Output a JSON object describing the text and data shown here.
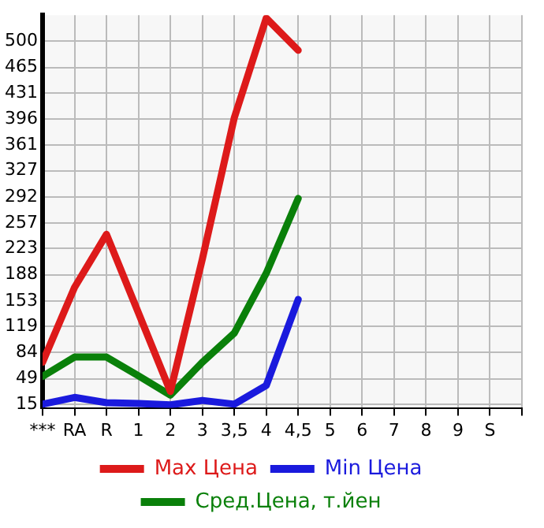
{
  "chart_data": {
    "type": "line",
    "categories": [
      "***",
      "RA",
      "R",
      "1",
      "2",
      "3",
      "3,5",
      "4",
      "4,5",
      "5",
      "6",
      "7",
      "8",
      "9",
      "S"
    ],
    "series": [
      {
        "name": "Max Цена",
        "color": "#dd1a1a",
        "values": [
          71,
          171,
          242,
          137,
          32,
          209,
          398,
          531,
          488,
          null,
          null,
          null,
          null,
          null,
          null
        ]
      },
      {
        "name": "Min Цена",
        "color": "#1a1add",
        "values": [
          15,
          24,
          17,
          16,
          14,
          20,
          15,
          40,
          155,
          null,
          null,
          null,
          null,
          null,
          null
        ]
      },
      {
        "name": "Сред.Цена, т.йен",
        "color": "#0a800a",
        "values": [
          52,
          78,
          78,
          53,
          27,
          71,
          110,
          190,
          290,
          null,
          null,
          null,
          null,
          null,
          null
        ]
      }
    ],
    "ylim": [
      10,
      535
    ],
    "yticks": [
      15,
      49,
      84,
      119,
      153,
      188,
      223,
      257,
      292,
      327,
      361,
      396,
      431,
      465,
      500
    ],
    "grid": true,
    "legend": "bottom",
    "marker": "none",
    "line_style": "solid"
  }
}
